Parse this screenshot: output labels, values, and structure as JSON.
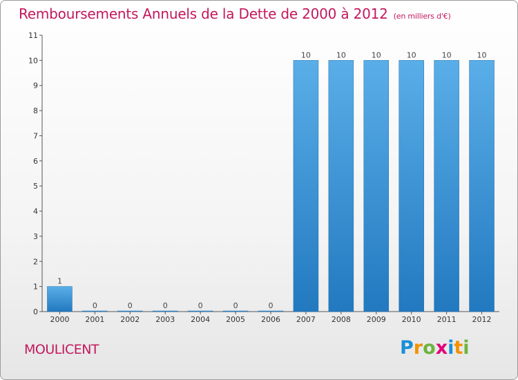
{
  "chart_data": {
    "type": "bar",
    "title": "Remboursements Annuels de la Dette de 2000 à 2012",
    "unit": "(en milliers d'€)",
    "xlabel": "",
    "ylabel": "",
    "categories": [
      "2000",
      "2001",
      "2002",
      "2003",
      "2004",
      "2005",
      "2006",
      "2007",
      "2008",
      "2009",
      "2010",
      "2011",
      "2012"
    ],
    "values": [
      1,
      0,
      0,
      0,
      0,
      0,
      0,
      10,
      10,
      10,
      10,
      10,
      10
    ],
    "data_labels": [
      "1",
      "0",
      "0",
      "0",
      "0",
      "0",
      "0",
      "10",
      "10",
      "10",
      "10",
      "10",
      "10"
    ],
    "ylim": [
      0,
      11
    ],
    "yticks": [
      0,
      1,
      2,
      3,
      4,
      5,
      6,
      7,
      8,
      9,
      10,
      11
    ],
    "grid": false,
    "bar_color": "#2e86cf",
    "bar_color_light": "#5aaee8"
  },
  "commune": "MOULICENT",
  "logo": {
    "letters": [
      "P",
      "r",
      "o",
      "x",
      "i",
      "t",
      "i"
    ],
    "colors": [
      "#1a8fd8",
      "#f39200",
      "#6cb33f",
      "#e2007a",
      "#1a8fd8",
      "#f39200",
      "#6cb33f"
    ]
  }
}
